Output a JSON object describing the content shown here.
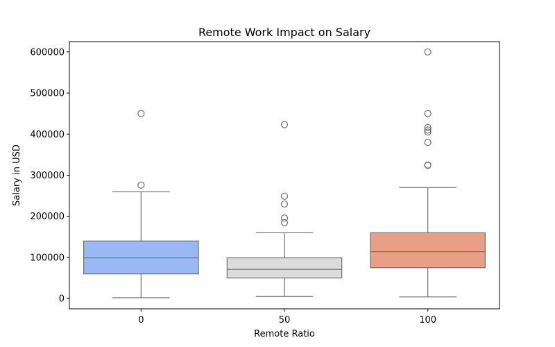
{
  "chart_data": {
    "type": "box",
    "title": "Remote Work Impact on Salary",
    "xlabel": "Remote Ratio",
    "ylabel": "Salary in USD",
    "ylim": [
      -25000,
      625000
    ],
    "yticks": [
      0,
      100000,
      200000,
      300000,
      400000,
      500000,
      600000
    ],
    "categories": [
      "0",
      "50",
      "100"
    ],
    "grid": false,
    "legend": "none",
    "boxes": [
      {
        "category": "0",
        "color": "#9ab8f6",
        "whisker_low": 2000,
        "q1": 60000,
        "median": 99000,
        "q3": 140000,
        "whisker_high": 260000,
        "outliers": [
          276000,
          450000
        ]
      },
      {
        "category": "50",
        "color": "#dcdcdc",
        "whisker_low": 5000,
        "q1": 50000,
        "median": 71000,
        "q3": 99000,
        "whisker_high": 160000,
        "outliers": [
          185000,
          196000,
          230000,
          249000,
          423000
        ]
      },
      {
        "category": "100",
        "color": "#e89f86",
        "whisker_low": 4000,
        "q1": 75000,
        "median": 114000,
        "q3": 160000,
        "whisker_high": 270000,
        "outliers": [
          324000,
          325000,
          380000,
          405000,
          410000,
          416000,
          450000,
          600000
        ]
      }
    ]
  }
}
